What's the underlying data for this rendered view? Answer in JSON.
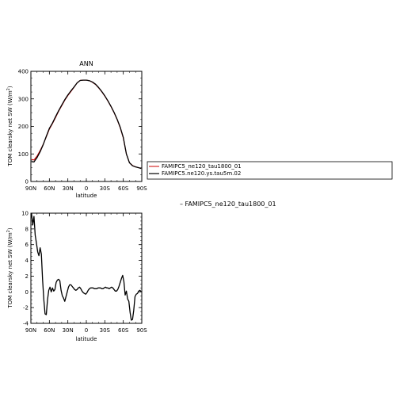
{
  "chart_data": [
    {
      "type": "line",
      "title": "ANN",
      "xlabel": "latitude",
      "ylabel": "TOM clearsky net SW (W/m",
      "ylabel_sup": "2",
      "ylabel_end": ")",
      "xlim": [
        90,
        -90
      ],
      "ylim": [
        0,
        400
      ],
      "xtick_values": [
        90,
        60,
        30,
        0,
        -30,
        -60,
        -90
      ],
      "xtick_labels": [
        "90N",
        "60N",
        "30N",
        "0",
        "30S",
        "60S",
        "90S"
      ],
      "ytick_values": [
        0,
        100,
        200,
        300,
        400
      ],
      "ytick_labels": [
        "0",
        "100",
        "200",
        "300",
        "400"
      ],
      "series": [
        {
          "name": "FAMIPC5_ne120_tau1800_01",
          "color": "#cc0000",
          "x": [
            89,
            85,
            80,
            75,
            70,
            65,
            60,
            55,
            50,
            45,
            40,
            35,
            30,
            25,
            20,
            15,
            10,
            5,
            0,
            -5,
            -10,
            -15,
            -20,
            -25,
            -30,
            -35,
            -40,
            -45,
            -50,
            -55,
            -60,
            -65,
            -70,
            -75,
            -80,
            -85,
            -89
          ],
          "values": [
            80,
            78,
            92,
            112,
            135,
            162,
            190,
            210,
            232,
            255,
            275,
            295,
            312,
            327,
            342,
            358,
            367,
            368,
            368,
            366,
            360,
            352,
            340,
            326,
            310,
            292,
            272,
            250,
            225,
            195,
            158,
            100,
            68,
            58,
            53,
            50,
            48
          ]
        },
        {
          "name": "FAMIPC5.ne120.ys.tau5m.02",
          "color": "#000000",
          "x": [
            89,
            85,
            80,
            75,
            70,
            65,
            60,
            55,
            50,
            45,
            40,
            35,
            30,
            25,
            20,
            15,
            10,
            5,
            0,
            -5,
            -10,
            -15,
            -20,
            -25,
            -30,
            -35,
            -40,
            -45,
            -50,
            -55,
            -60,
            -65,
            -70,
            -75,
            -80,
            -85,
            -89
          ],
          "values": [
            72,
            71,
            87,
            108,
            134,
            164,
            193,
            212,
            235,
            257,
            277,
            297,
            314,
            329,
            343,
            358,
            367,
            368,
            368,
            366,
            361,
            353,
            341,
            327,
            311,
            293,
            273,
            251,
            226,
            197,
            160,
            100,
            68,
            57,
            53,
            50,
            47
          ]
        }
      ]
    },
    {
      "type": "line",
      "title": "",
      "label": "– FAMIPC5_ne120_tau1800_01",
      "xlabel": "latitude",
      "ylabel": "TOM clearsky net SW (W/m",
      "ylabel_sup": "2",
      "ylabel_end": ")",
      "xlim": [
        90,
        -90
      ],
      "ylim": [
        -4,
        10
      ],
      "xtick_values": [
        90,
        60,
        30,
        0,
        -30,
        -60,
        -90
      ],
      "xtick_labels": [
        "90N",
        "60N",
        "30N",
        "0",
        "30S",
        "60S",
        "90S"
      ],
      "ytick_values": [
        -4,
        -2,
        0,
        2,
        4,
        6,
        8,
        10
      ],
      "ytick_labels": [
        "-4",
        "-2",
        "0",
        "2",
        "4",
        "6",
        "8",
        "10"
      ],
      "series": [
        {
          "color": "#000000",
          "x": [
            89,
            87,
            85,
            83,
            81,
            79,
            77,
            75,
            73,
            71,
            69,
            67,
            65,
            63,
            61,
            59,
            57,
            55,
            53,
            51,
            49,
            47,
            45,
            43,
            41,
            39,
            37,
            35,
            33,
            31,
            29,
            27,
            25,
            23,
            21,
            19,
            17,
            15,
            13,
            11,
            9,
            7,
            5,
            3,
            1,
            -1,
            -3,
            -5,
            -7,
            -9,
            -11,
            -13,
            -15,
            -17,
            -19,
            -21,
            -23,
            -25,
            -27,
            -29,
            -31,
            -33,
            -35,
            -37,
            -39,
            -41,
            -43,
            -45,
            -47,
            -49,
            -51,
            -53,
            -55,
            -57,
            -59,
            -61,
            -63,
            -65,
            -67,
            -69,
            -71,
            -73,
            -75,
            -77,
            -79,
            -81,
            -83,
            -85,
            -87,
            -89
          ],
          "values": [
            10,
            8.5,
            9.6,
            7.2,
            6.2,
            5.1,
            4.6,
            5.6,
            4.8,
            1.5,
            -1.0,
            -2.8,
            -2.9,
            -1.0,
            0.2,
            0.6,
            0.0,
            0.5,
            0.1,
            0.3,
            1.2,
            1.5,
            1.6,
            1.4,
            0.2,
            -0.5,
            -0.8,
            -1.2,
            -0.6,
            0.0,
            0.6,
            0.9,
            0.9,
            0.7,
            0.5,
            0.3,
            0.2,
            0.3,
            0.5,
            0.6,
            0.4,
            0.1,
            -0.1,
            -0.2,
            -0.3,
            -0.1,
            0.2,
            0.4,
            0.5,
            0.5,
            0.5,
            0.4,
            0.4,
            0.4,
            0.5,
            0.5,
            0.5,
            0.4,
            0.4,
            0.5,
            0.6,
            0.5,
            0.5,
            0.4,
            0.5,
            0.6,
            0.5,
            0.3,
            0.1,
            0.1,
            0.3,
            0.7,
            1.2,
            1.7,
            2.1,
            1.3,
            -0.4,
            0.1,
            -0.9,
            -1.2,
            -2.6,
            -3.6,
            -3.5,
            -2.3,
            -0.6,
            -0.3,
            -0.2,
            0.1,
            0.2,
            0.0
          ]
        }
      ]
    }
  ]
}
